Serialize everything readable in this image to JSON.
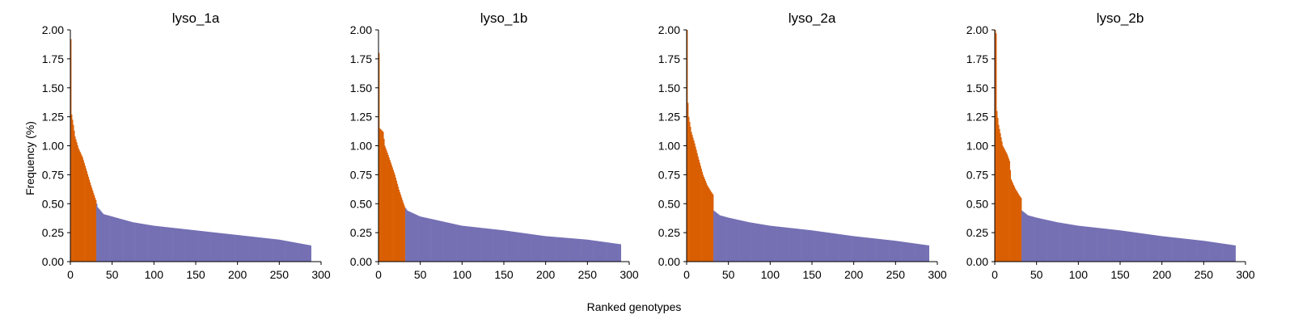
{
  "figure": {
    "xlabel": "Ranked genotypes",
    "ylabel": "Frequency (%)"
  },
  "chart_data": [
    {
      "type": "bar",
      "title": "lyso_1a",
      "xlabel": "Ranked genotypes",
      "ylabel": "Frequency (%)",
      "xlim": [
        0,
        300
      ],
      "ylim": [
        0,
        2.0
      ],
      "xticks": [
        "0",
        "50",
        "100",
        "150",
        "200",
        "250",
        "300"
      ],
      "yticks": [
        "0.00",
        "0.25",
        "0.50",
        "0.75",
        "1.00",
        "1.25",
        "1.50",
        "1.75",
        "2.00"
      ],
      "grid": false,
      "colors": {
        "top": "#d95f02",
        "rest": "#7570b3"
      },
      "n_genotypes": 288,
      "n_highlight": 31,
      "profile": [
        [
          1,
          1.92
        ],
        [
          2,
          1.27
        ],
        [
          4,
          1.18
        ],
        [
          6,
          1.08
        ],
        [
          10,
          0.98
        ],
        [
          15,
          0.9
        ],
        [
          20,
          0.78
        ],
        [
          25,
          0.66
        ],
        [
          30,
          0.55
        ],
        [
          31,
          0.53
        ],
        [
          33,
          0.47
        ],
        [
          40,
          0.41
        ],
        [
          50,
          0.39
        ],
        [
          75,
          0.34
        ],
        [
          100,
          0.31
        ],
        [
          150,
          0.27
        ],
        [
          200,
          0.23
        ],
        [
          250,
          0.19
        ],
        [
          288,
          0.14
        ]
      ]
    },
    {
      "type": "bar",
      "title": "lyso_1b",
      "xlabel": "Ranked genotypes",
      "ylabel": "Frequency (%)",
      "xlim": [
        0,
        300
      ],
      "ylim": [
        0,
        2.0
      ],
      "xticks": [
        "0",
        "50",
        "100",
        "150",
        "200",
        "250",
        "300"
      ],
      "yticks": [
        "0.00",
        "0.25",
        "0.50",
        "0.75",
        "1.00",
        "1.25",
        "1.50",
        "1.75",
        "2.00"
      ],
      "grid": false,
      "colors": {
        "top": "#d95f02",
        "rest": "#7570b3"
      },
      "n_genotypes": 290,
      "n_highlight": 32,
      "profile": [
        [
          1,
          1.8
        ],
        [
          2,
          1.15
        ],
        [
          6,
          1.12
        ],
        [
          8,
          1.0
        ],
        [
          12,
          0.92
        ],
        [
          20,
          0.75
        ],
        [
          25,
          0.62
        ],
        [
          30,
          0.51
        ],
        [
          32,
          0.47
        ],
        [
          35,
          0.44
        ],
        [
          50,
          0.39
        ],
        [
          75,
          0.35
        ],
        [
          100,
          0.31
        ],
        [
          150,
          0.27
        ],
        [
          200,
          0.22
        ],
        [
          250,
          0.19
        ],
        [
          290,
          0.15
        ]
      ]
    },
    {
      "type": "bar",
      "title": "lyso_2a",
      "xlabel": "Ranked genotypes",
      "ylabel": "Frequency (%)",
      "xlim": [
        0,
        300
      ],
      "ylim": [
        0,
        2.0
      ],
      "xticks": [
        "0",
        "50",
        "100",
        "150",
        "200",
        "250",
        "300"
      ],
      "yticks": [
        "0.00",
        "0.25",
        "0.50",
        "0.75",
        "1.00",
        "1.25",
        "1.50",
        "1.75",
        "2.00"
      ],
      "grid": false,
      "colors": {
        "top": "#d95f02",
        "rest": "#7570b3"
      },
      "n_genotypes": 290,
      "n_highlight": 32,
      "profile": [
        [
          1,
          2.0
        ],
        [
          2,
          1.37
        ],
        [
          3,
          1.25
        ],
        [
          6,
          1.12
        ],
        [
          10,
          1.02
        ],
        [
          15,
          0.88
        ],
        [
          20,
          0.75
        ],
        [
          25,
          0.66
        ],
        [
          30,
          0.6
        ],
        [
          32,
          0.58
        ],
        [
          33,
          0.44
        ],
        [
          40,
          0.4
        ],
        [
          50,
          0.38
        ],
        [
          75,
          0.34
        ],
        [
          100,
          0.31
        ],
        [
          150,
          0.27
        ],
        [
          200,
          0.22
        ],
        [
          250,
          0.18
        ],
        [
          290,
          0.14
        ]
      ]
    },
    {
      "type": "bar",
      "title": "lyso_2b",
      "xlabel": "Ranked genotypes",
      "ylabel": "Frequency (%)",
      "xlim": [
        0,
        300
      ],
      "ylim": [
        0,
        2.0
      ],
      "xticks": [
        "0",
        "50",
        "100",
        "150",
        "200",
        "250",
        "300"
      ],
      "yticks": [
        "0.00",
        "0.25",
        "0.50",
        "0.75",
        "1.00",
        "1.25",
        "1.50",
        "1.75",
        "2.00"
      ],
      "grid": false,
      "colors": {
        "top": "#d95f02",
        "rest": "#7570b3"
      },
      "n_genotypes": 288,
      "n_highlight": 32,
      "profile": [
        [
          1,
          2.0
        ],
        [
          2,
          1.97
        ],
        [
          3,
          1.3
        ],
        [
          5,
          1.18
        ],
        [
          10,
          1.0
        ],
        [
          15,
          0.93
        ],
        [
          18,
          0.87
        ],
        [
          20,
          0.71
        ],
        [
          25,
          0.63
        ],
        [
          30,
          0.57
        ],
        [
          32,
          0.55
        ],
        [
          33,
          0.44
        ],
        [
          40,
          0.4
        ],
        [
          50,
          0.38
        ],
        [
          75,
          0.34
        ],
        [
          100,
          0.31
        ],
        [
          150,
          0.27
        ],
        [
          200,
          0.22
        ],
        [
          250,
          0.18
        ],
        [
          288,
          0.14
        ]
      ]
    }
  ]
}
